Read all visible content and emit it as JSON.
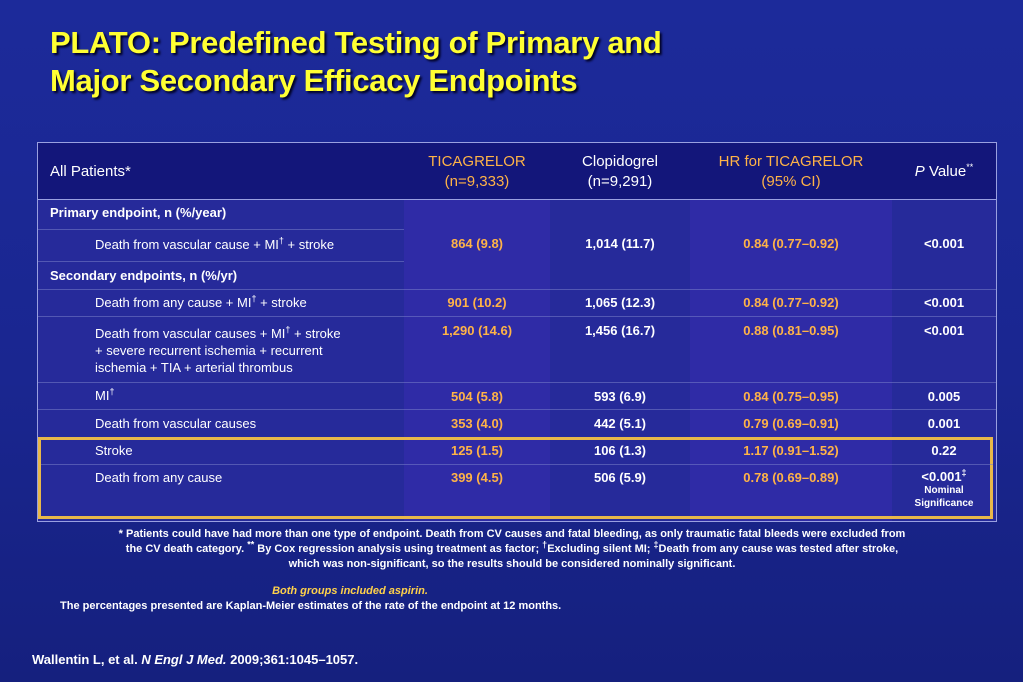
{
  "title": {
    "line1": "PLATO: Predefined Testing of Primary and",
    "line2": "Major Secondary Efficacy Endpoints"
  },
  "table": {
    "headers": {
      "patients": "All Patients*",
      "tica_line1": "TICAGRELOR",
      "tica_line2": "(n=9,333)",
      "clop_line1": "Clopidogrel",
      "clop_line2": "(n=9,291)",
      "hr_line1": "HR for TICAGRELOR",
      "hr_line2": "(95% CI)",
      "p_italic": "P",
      "p_rest": " Value",
      "p_sup": "**"
    },
    "primary_label": "Primary endpoint, n (%/year)",
    "secondary_label": "Secondary endpoints,  n (%/yr)",
    "rows": [
      {
        "label_pre": "Death from vascular cause + MI",
        "label_sup": "†",
        "label_post": " + stroke",
        "tica": "864 (9.8)",
        "clop": "1,014 (11.7)",
        "hr": "0.84 (0.77–0.92)",
        "p": "<0.001"
      },
      {
        "label_pre": "Death from any cause + MI",
        "label_sup": "†",
        "label_post": " + stroke",
        "tica": "901 (10.2)",
        "clop": "1,065 (12.3)",
        "hr": "0.84 (0.77–0.92)",
        "p": "<0.001"
      },
      {
        "label_pre": "Death from vascular causes + MI",
        "label_sup": "†",
        "label_post": " + stroke",
        "label_line2": "+ severe recurrent ischemia + recurrent",
        "label_line3": "ischemia + TIA + arterial thrombus",
        "tica": "1,290 (14.6)",
        "clop": "1,456 (16.7)",
        "hr": "0.88 (0.81–0.95)",
        "p": "<0.001"
      },
      {
        "label_pre": "MI",
        "label_sup": "†",
        "label_post": "",
        "tica": "504 (5.8)",
        "clop": "593 (6.9)",
        "hr": "0.84 (0.75–0.95)",
        "p": "0.005"
      },
      {
        "label_pre": "Death from vascular causes",
        "label_sup": "",
        "label_post": "",
        "tica": "353 (4.0)",
        "clop": "442 (5.1)",
        "hr": "0.79 (0.69–0.91)",
        "p": "0.001"
      },
      {
        "label_pre": "Stroke",
        "label_sup": "",
        "label_post": "",
        "tica": "125 (1.5)",
        "clop": "106 (1.3)",
        "hr": "1.17 (0.91–1.52)",
        "p": "0.22"
      },
      {
        "label_pre": "Death from any cause",
        "label_sup": "",
        "label_post": "",
        "tica": "399 (4.5)",
        "clop": "506 (5.9)",
        "hr": "0.78 (0.69–0.89)",
        "p": "<0.001",
        "p_sup": "‡",
        "p_note_line1": "Nominal",
        "p_note_line2": "Significance"
      }
    ]
  },
  "footnote": {
    "line1": "* Patients could have had more than one type of endpoint. Death from CV causes and fatal bleeding, as only traumatic fatal bleeds were excluded from",
    "line2_a": "the CV death category. ",
    "line2_sup1": "**",
    "line2_b": " By Cox regression analysis using treatment as factor; ",
    "line2_sup2": "†",
    "line2_c": "Excluding silent MI; ",
    "line2_sup3": "‡",
    "line2_d": "Death from any cause was tested after stroke,",
    "line3": "which was non-significant, so the results should be considered nominally significant."
  },
  "aspirin_note": "Both groups included aspirin.",
  "km_note": "The percentages presented are Kaplan-Meier estimates of the rate of the endpoint at 12 months.",
  "citation": {
    "authors": "Wallentin L, et al. ",
    "journal": "N Engl J Med.",
    "details": " 2009;361:1045–1057."
  },
  "colors": {
    "background": "#1a2690",
    "title": "#ffff33",
    "ticagrelor_values": "#ffb347",
    "highlight_box": "#e8b84a"
  }
}
